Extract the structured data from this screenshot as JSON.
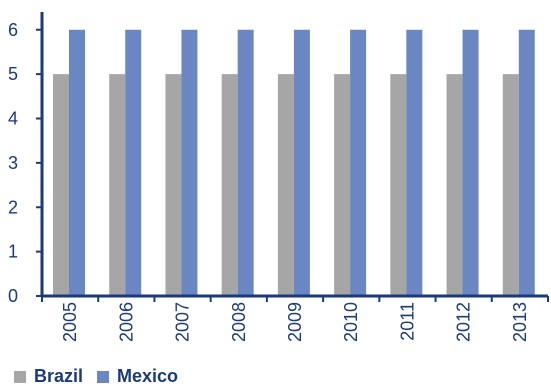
{
  "chart_data": {
    "type": "bar",
    "categories": [
      "2005",
      "2006",
      "2007",
      "2008",
      "2009",
      "2010",
      "2011",
      "2012",
      "2013"
    ],
    "series": [
      {
        "name": "Brazil",
        "values": [
          5,
          5,
          5,
          5,
          5,
          5,
          5,
          5,
          5
        ],
        "color": "#a6a6a6"
      },
      {
        "name": "Mexico",
        "values": [
          6,
          6,
          6,
          6,
          6,
          6,
          6,
          6,
          6
        ],
        "color": "#6a87c4"
      }
    ],
    "y_ticks": [
      "0",
      "1",
      "2",
      "3",
      "4",
      "5",
      "6"
    ],
    "ylim": [
      0,
      6.4
    ],
    "title": "",
    "xlabel": "",
    "ylabel": "",
    "grid": false,
    "legend_position": "bottom-left",
    "axis_color": "#1b3a7a"
  },
  "legend": {
    "items": [
      {
        "label": "Brazil",
        "color": "#a6a6a6"
      },
      {
        "label": "Mexico",
        "color": "#6a87c4"
      }
    ]
  }
}
